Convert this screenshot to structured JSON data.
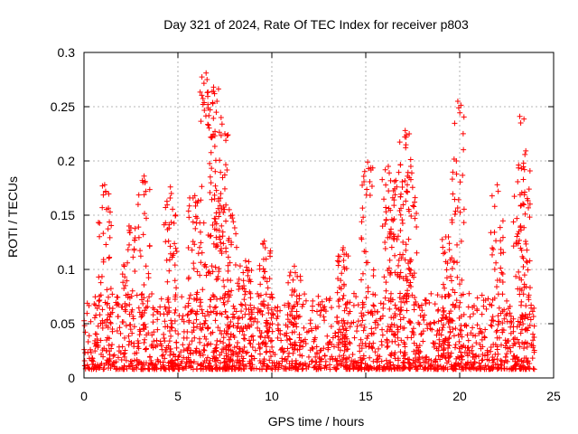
{
  "chart_data": {
    "type": "scatter",
    "title": "Day 321 of 2024, Rate Of TEC Index for receiver p803",
    "xlabel": "GPS time / hours",
    "ylabel": "ROTI / TECUs",
    "xlim": [
      0,
      25
    ],
    "ylim": [
      0,
      0.3
    ],
    "x_ticks": [
      "0",
      "5",
      "10",
      "15",
      "20",
      "25"
    ],
    "y_ticks": [
      "0",
      "0.05",
      "0.1",
      "0.15",
      "0.2",
      "0.25",
      "0.3"
    ],
    "grid": true,
    "marker": "plus",
    "series_color": "#ff0000",
    "notes": "Dense scatter of ROTI samples from 0 to 24 h; most values between 0.01 and 0.08 TECU/min with spikes.",
    "x_range_data": [
      0,
      24
    ],
    "baseline_band": [
      0.008,
      0.06
    ],
    "spikes": [
      {
        "x": 1.1,
        "y": 0.178
      },
      {
        "x": 2.4,
        "y": 0.14
      },
      {
        "x": 3.2,
        "y": 0.186
      },
      {
        "x": 4.6,
        "y": 0.176
      },
      {
        "x": 5.9,
        "y": 0.168
      },
      {
        "x": 6.5,
        "y": 0.281
      },
      {
        "x": 6.9,
        "y": 0.268
      },
      {
        "x": 7.3,
        "y": 0.24
      },
      {
        "x": 7.5,
        "y": 0.225
      },
      {
        "x": 7.9,
        "y": 0.15
      },
      {
        "x": 8.6,
        "y": 0.108
      },
      {
        "x": 9.6,
        "y": 0.126
      },
      {
        "x": 11.2,
        "y": 0.103
      },
      {
        "x": 13.8,
        "y": 0.12
      },
      {
        "x": 15.1,
        "y": 0.199
      },
      {
        "x": 16.2,
        "y": 0.195
      },
      {
        "x": 16.6,
        "y": 0.182
      },
      {
        "x": 17.1,
        "y": 0.228
      },
      {
        "x": 17.4,
        "y": 0.195
      },
      {
        "x": 19.4,
        "y": 0.13
      },
      {
        "x": 19.9,
        "y": 0.255
      },
      {
        "x": 22.0,
        "y": 0.178
      },
      {
        "x": 23.2,
        "y": 0.241
      },
      {
        "x": 23.4,
        "y": 0.198
      }
    ]
  }
}
